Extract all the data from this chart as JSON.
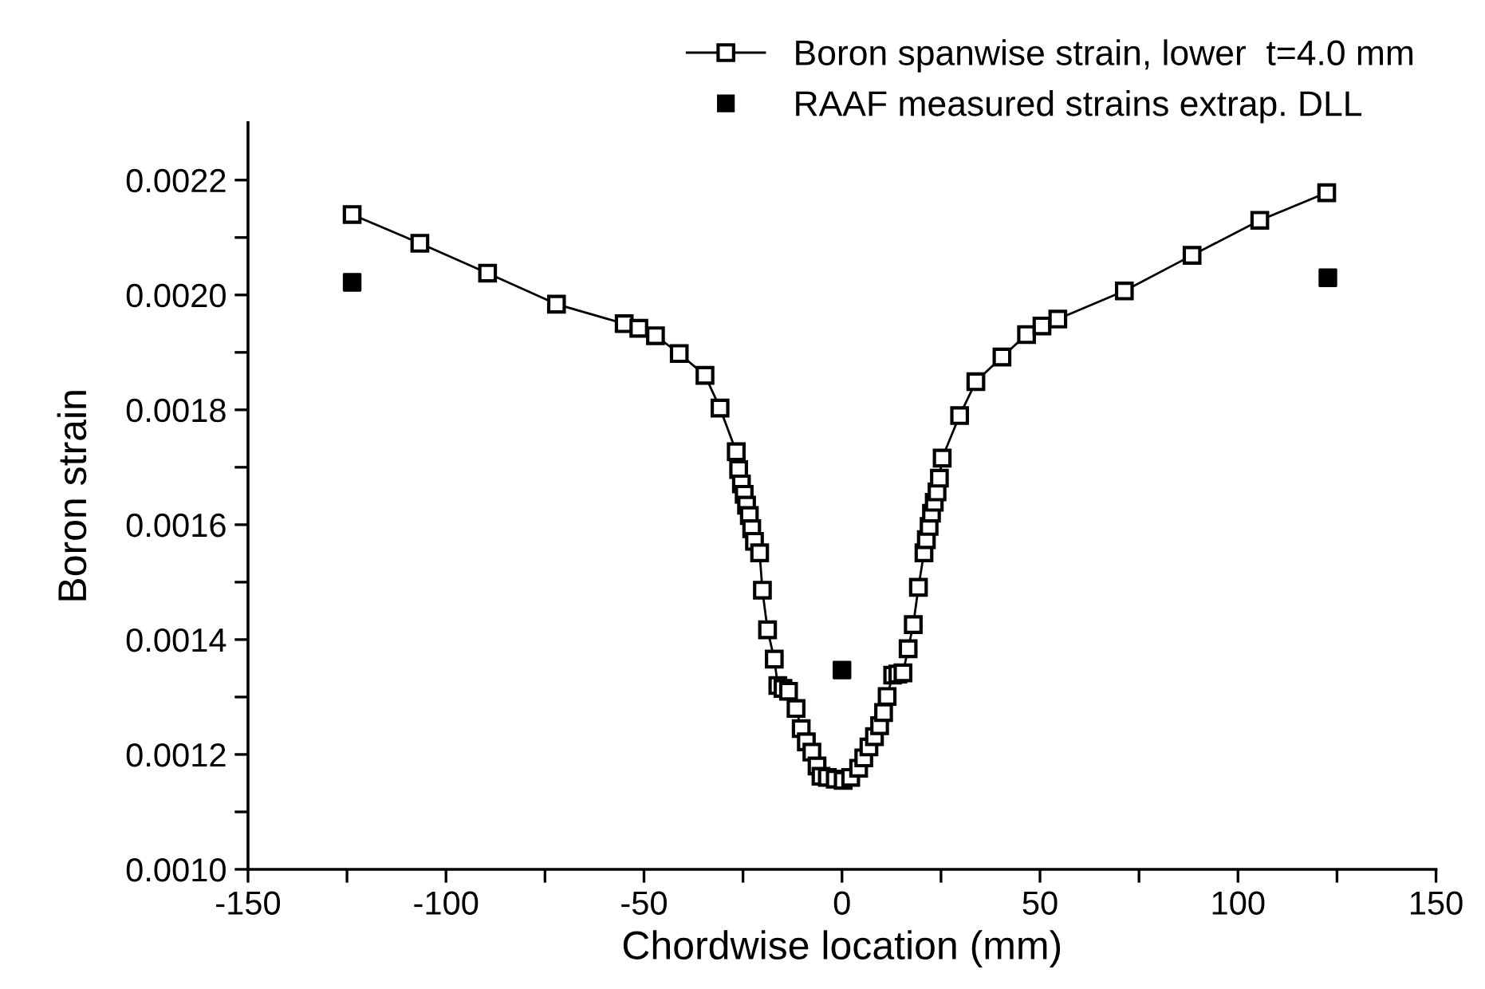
{
  "chart_data": {
    "type": "line",
    "xlabel": "Chordwise location (mm)",
    "ylabel": "Boron strain",
    "xlim": [
      -150,
      150
    ],
    "ylim": [
      0.001,
      0.0023
    ],
    "xticks": [
      -150,
      {
        "value": -125,
        "label": null
      },
      -100,
      {
        "value": -75,
        "label": null
      },
      -50,
      {
        "value": -25,
        "label": null
      },
      0,
      {
        "value": 25,
        "label": null
      },
      50,
      {
        "value": 75,
        "label": null
      },
      100,
      {
        "value": 125,
        "label": null
      },
      150
    ],
    "yticks": [
      {
        "value": 0.001,
        "label": "0.0010"
      },
      {
        "value": 0.0011,
        "label": null
      },
      {
        "value": 0.0012,
        "label": "0.0012"
      },
      {
        "value": 0.0013,
        "label": null
      },
      {
        "value": 0.0014,
        "label": "0.0014"
      },
      {
        "value": 0.0015,
        "label": null
      },
      {
        "value": 0.0016,
        "label": "0.0016"
      },
      {
        "value": 0.0017,
        "label": null
      },
      {
        "value": 0.0018,
        "label": "0.0018"
      },
      {
        "value": 0.0019,
        "label": null
      },
      {
        "value": 0.002,
        "label": "0.0020"
      },
      {
        "value": 0.0021,
        "label": null
      },
      {
        "value": 0.0022,
        "label": "0.0022"
      }
    ],
    "grid": false,
    "legend": "top right",
    "series": [
      {
        "name": "Boron spanwise strain, lower  t=4.0 mm",
        "marker": "square",
        "line_style": "solid",
        "color": "#000000",
        "x": [
          -123.7,
          -106.6,
          -89.5,
          -72.1,
          -55.0,
          -51.3,
          -47.1,
          -41.1,
          -34.6,
          -30.8,
          -26.7,
          -26.1,
          -25.4,
          -24.7,
          -24.1,
          -23.4,
          -22.8,
          -22.1,
          -20.8,
          -20.1,
          -18.8,
          -17.1,
          -16.2,
          -14.9,
          -13.5,
          -11.6,
          -10.3,
          -9.0,
          -7.6,
          -6.3,
          -5.3,
          -3.7,
          -1.7,
          0.3,
          2.2,
          4.2,
          5.5,
          6.8,
          8.2,
          9.5,
          10.5,
          11.4,
          12.8,
          14.1,
          15.4,
          16.7,
          18.0,
          19.3,
          20.7,
          21.3,
          22.0,
          22.6,
          23.3,
          24.0,
          24.6,
          25.3,
          29.7,
          33.8,
          40.4,
          46.6,
          50.5,
          54.5,
          71.3,
          88.4,
          105.5,
          122.4
        ],
        "values": [
          0.00214,
          0.00209,
          0.002038,
          0.001984,
          0.00195,
          0.001942,
          0.001929,
          0.001898,
          0.00186,
          0.001803,
          0.001727,
          0.001696,
          0.001671,
          0.001653,
          0.001634,
          0.001616,
          0.001593,
          0.001571,
          0.001551,
          0.001486,
          0.001417,
          0.001366,
          0.00132,
          0.001315,
          0.00131,
          0.00128,
          0.001245,
          0.001222,
          0.001204,
          0.00118,
          0.001162,
          0.00116,
          0.001157,
          0.001155,
          0.00116,
          0.001176,
          0.001194,
          0.001213,
          0.001231,
          0.00125,
          0.001273,
          0.001301,
          0.001338,
          0.00134,
          0.001342,
          0.001384,
          0.001426,
          0.001491,
          0.001551,
          0.001574,
          0.001597,
          0.00162,
          0.001639,
          0.001657,
          0.001681,
          0.001716,
          0.00179,
          0.001849,
          0.001892,
          0.001931,
          0.001946,
          0.001958,
          0.002007,
          0.002069,
          0.00213,
          0.002178
        ]
      },
      {
        "name": "RAAF measured strains extrap. DLL",
        "type": "scatter",
        "marker": "square",
        "color": "#000000",
        "x": [
          -123.7,
          0,
          122.7
        ],
        "values": [
          0.002022,
          0.001347,
          0.00203
        ]
      }
    ]
  }
}
